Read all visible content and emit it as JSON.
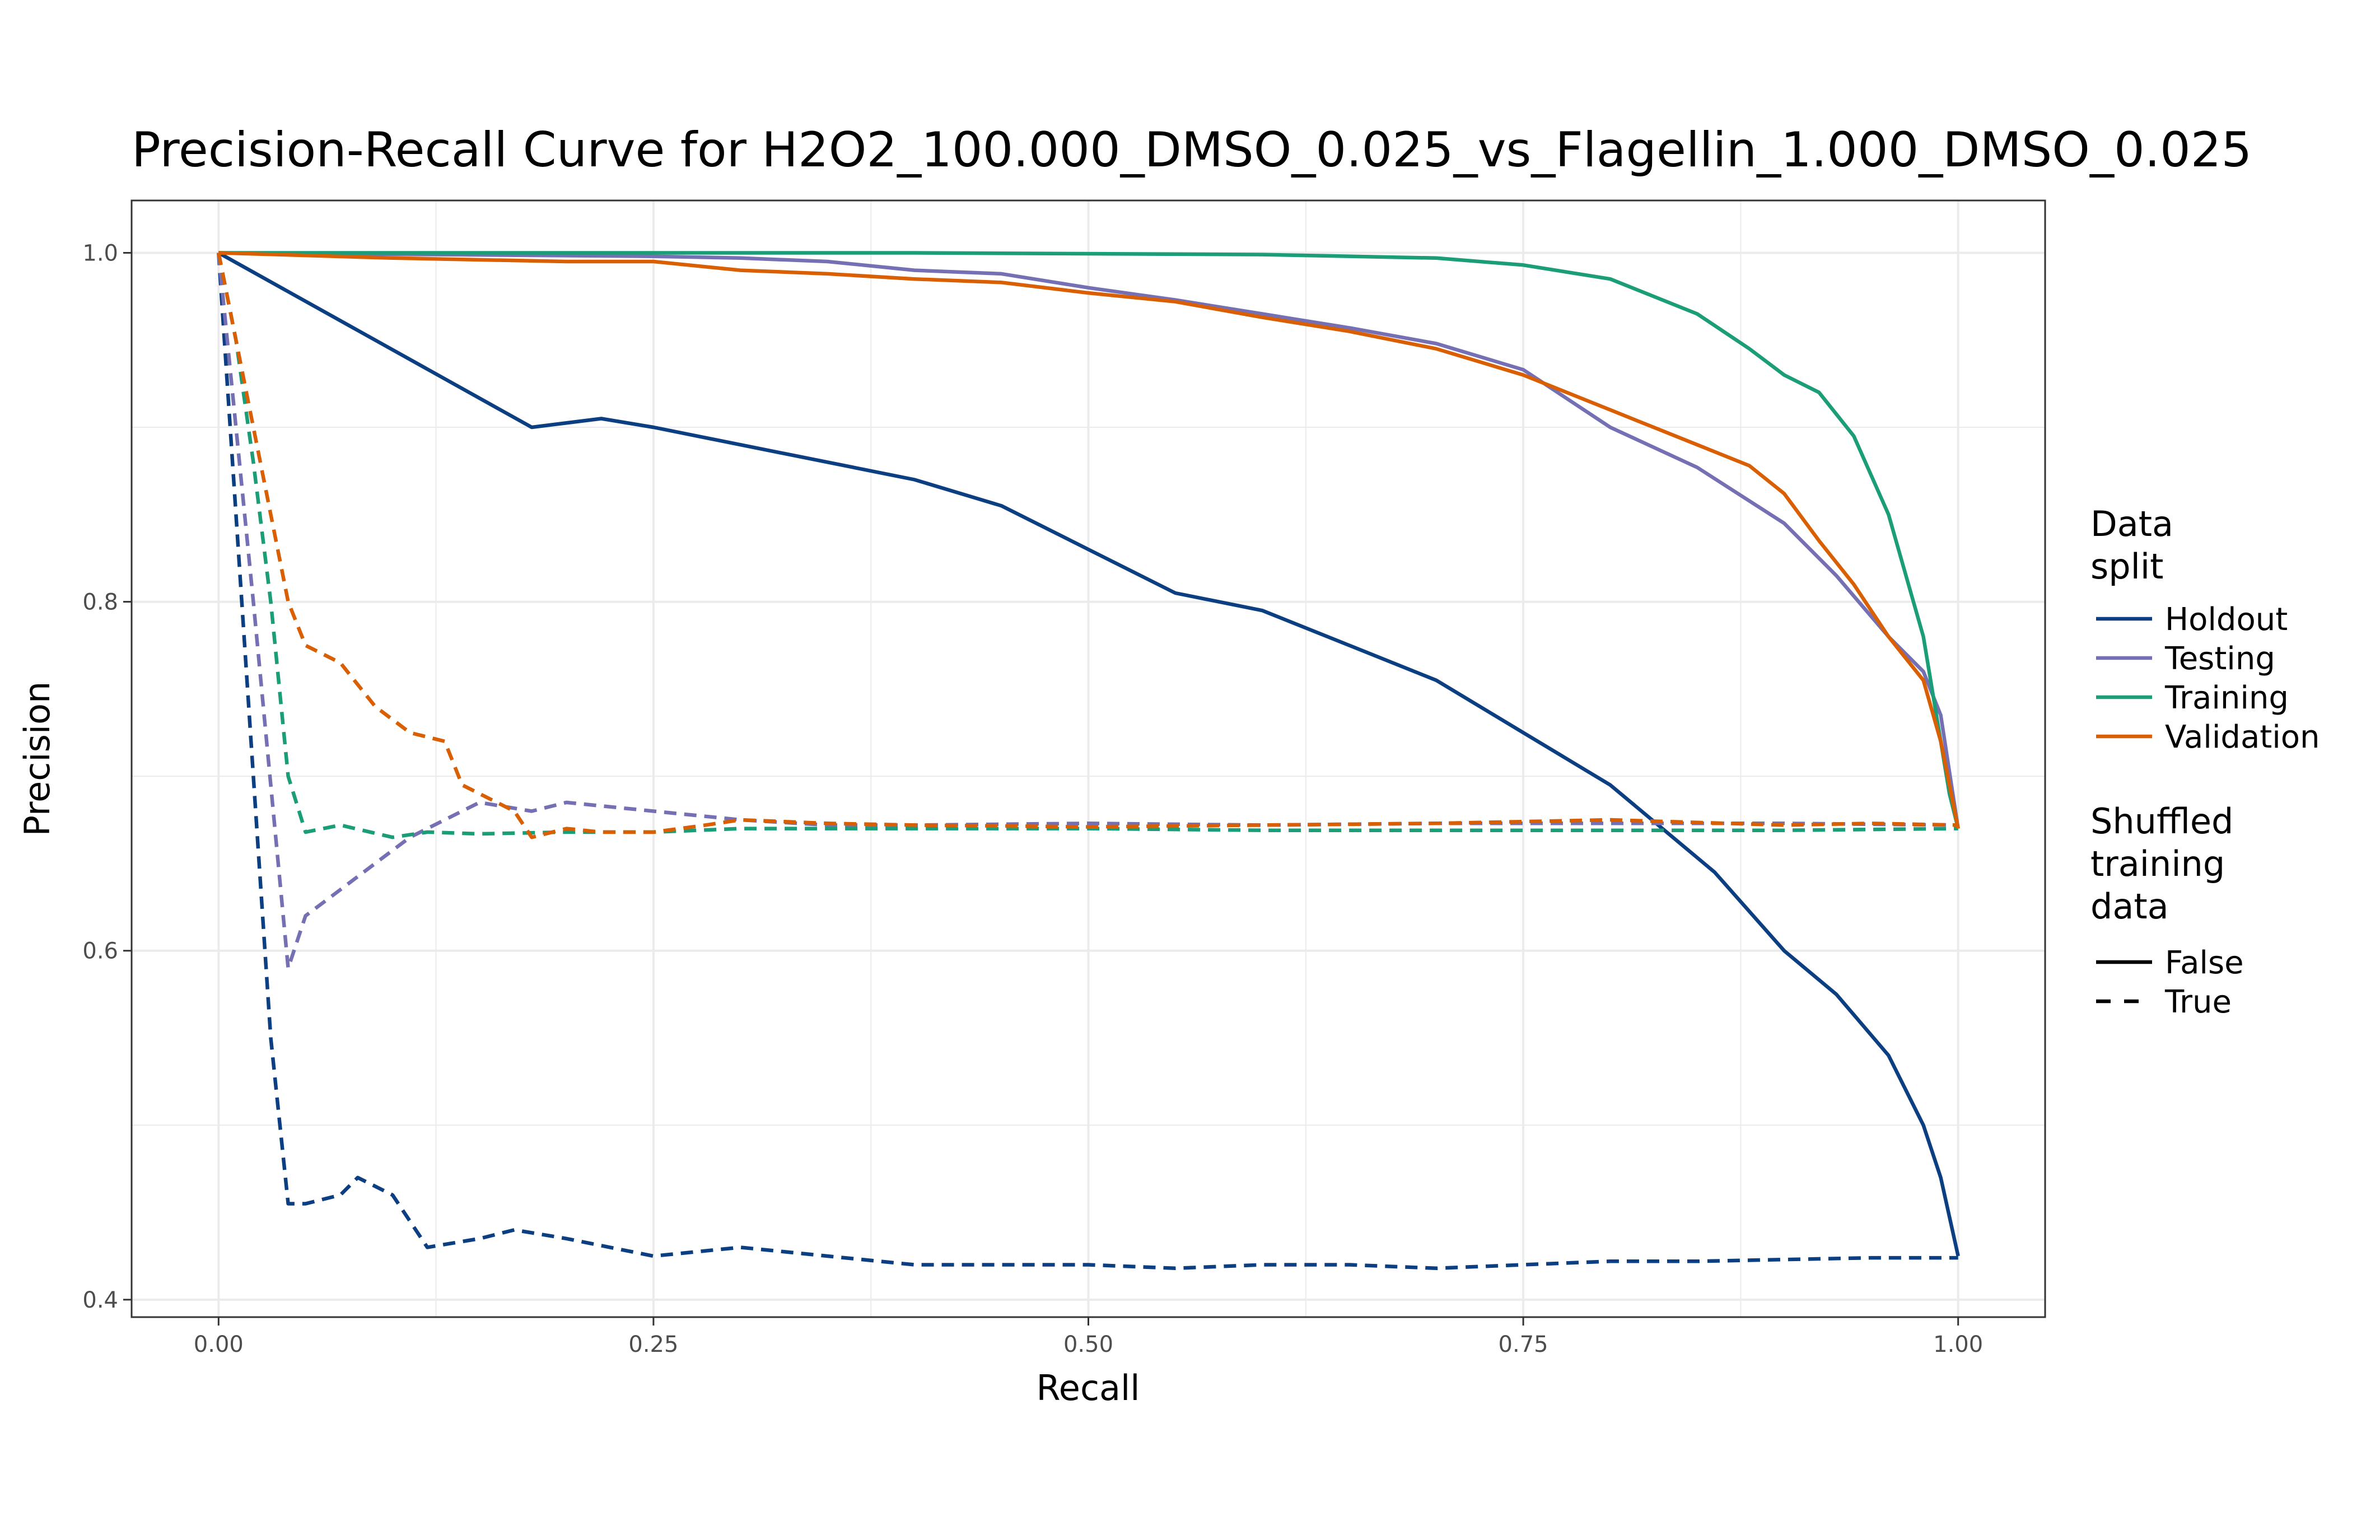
{
  "chart_data": {
    "type": "line",
    "title": "Precision-Recall Curve for H2O2_100.000_DMSO_0.025_vs_Flagellin_1.000_DMSO_0.025",
    "xlabel": "Recall",
    "ylabel": "Precision",
    "xlim": [
      -0.05,
      1.05
    ],
    "ylim": [
      0.39,
      1.03
    ],
    "x_ticks": [
      "0.00",
      "0.25",
      "0.50",
      "0.75",
      "1.00"
    ],
    "y_ticks": [
      "0.4",
      "0.6",
      "0.8",
      "1.0"
    ],
    "grid": true,
    "legend_position": "right",
    "legend": {
      "color_title": "Data split",
      "linetype_title": "Shuffled training data",
      "linetype_entries": [
        {
          "label": "False",
          "dash": "solid"
        },
        {
          "label": "True",
          "dash": "dashed"
        }
      ]
    },
    "series": [
      {
        "name": "Holdout",
        "color": "#0b3f82",
        "shuffled": "False",
        "x": [
          0,
          0.18,
          0.22,
          0.25,
          0.3,
          0.35,
          0.4,
          0.45,
          0.5,
          0.55,
          0.6,
          0.65,
          0.7,
          0.75,
          0.8,
          0.83,
          0.86,
          0.9,
          0.93,
          0.96,
          0.98,
          0.99,
          1.0
        ],
        "y": [
          1.0,
          0.9,
          0.905,
          0.9,
          0.89,
          0.88,
          0.87,
          0.855,
          0.83,
          0.805,
          0.795,
          0.775,
          0.755,
          0.725,
          0.695,
          0.67,
          0.645,
          0.6,
          0.575,
          0.54,
          0.5,
          0.47,
          0.425
        ]
      },
      {
        "name": "Holdout",
        "color": "#0b3f82",
        "shuffled": "True",
        "x": [
          0,
          0.01,
          0.02,
          0.03,
          0.04,
          0.05,
          0.07,
          0.08,
          0.1,
          0.12,
          0.15,
          0.17,
          0.2,
          0.25,
          0.3,
          0.35,
          0.4,
          0.45,
          0.5,
          0.55,
          0.6,
          0.65,
          0.7,
          0.75,
          0.8,
          0.85,
          0.9,
          0.95,
          1.0
        ],
        "y": [
          1.0,
          0.85,
          0.7,
          0.55,
          0.455,
          0.455,
          0.46,
          0.47,
          0.46,
          0.43,
          0.435,
          0.44,
          0.435,
          0.425,
          0.43,
          0.425,
          0.42,
          0.42,
          0.42,
          0.418,
          0.42,
          0.42,
          0.418,
          0.42,
          0.422,
          0.422,
          0.423,
          0.424,
          0.424
        ]
      },
      {
        "name": "Testing",
        "color": "#7570b3",
        "shuffled": "False",
        "x": [
          0,
          0.25,
          0.3,
          0.35,
          0.4,
          0.45,
          0.5,
          0.55,
          0.6,
          0.65,
          0.7,
          0.75,
          0.8,
          0.85,
          0.9,
          0.93,
          0.96,
          0.98,
          0.99,
          1.0
        ],
        "y": [
          1.0,
          0.998,
          0.997,
          0.995,
          0.99,
          0.988,
          0.98,
          0.973,
          0.965,
          0.957,
          0.948,
          0.933,
          0.9,
          0.877,
          0.845,
          0.815,
          0.78,
          0.76,
          0.735,
          0.67
        ]
      },
      {
        "name": "Testing",
        "color": "#7570b3",
        "shuffled": "True",
        "x": [
          0,
          0.02,
          0.04,
          0.05,
          0.07,
          0.09,
          0.11,
          0.13,
          0.15,
          0.18,
          0.2,
          0.25,
          0.3,
          0.35,
          0.4,
          0.5,
          0.6,
          0.7,
          0.8,
          0.9,
          1.0
        ],
        "y": [
          1.0,
          0.8,
          0.59,
          0.62,
          0.635,
          0.65,
          0.665,
          0.675,
          0.685,
          0.68,
          0.685,
          0.68,
          0.675,
          0.672,
          0.672,
          0.673,
          0.672,
          0.673,
          0.673,
          0.673,
          0.672
        ]
      },
      {
        "name": "Training",
        "color": "#1b9e77",
        "shuffled": "False",
        "x": [
          0,
          0.2,
          0.4,
          0.6,
          0.7,
          0.75,
          0.8,
          0.85,
          0.88,
          0.9,
          0.92,
          0.94,
          0.96,
          0.98,
          0.99,
          0.995,
          1.0
        ],
        "y": [
          1.0,
          1.0,
          1.0,
          0.999,
          0.997,
          0.993,
          0.985,
          0.965,
          0.945,
          0.93,
          0.92,
          0.895,
          0.85,
          0.78,
          0.72,
          0.69,
          0.67
        ]
      },
      {
        "name": "Training",
        "color": "#1b9e77",
        "shuffled": "True",
        "x": [
          0,
          0.01,
          0.02,
          0.03,
          0.04,
          0.05,
          0.07,
          0.1,
          0.12,
          0.15,
          0.2,
          0.25,
          0.3,
          0.4,
          0.5,
          0.6,
          0.7,
          0.8,
          0.9,
          1.0
        ],
        "y": [
          1.0,
          0.95,
          0.88,
          0.8,
          0.7,
          0.668,
          0.672,
          0.665,
          0.668,
          0.667,
          0.668,
          0.668,
          0.67,
          0.67,
          0.67,
          0.669,
          0.669,
          0.669,
          0.669,
          0.67
        ]
      },
      {
        "name": "Validation",
        "color": "#d95f02",
        "shuffled": "False",
        "x": [
          0,
          0.1,
          0.2,
          0.25,
          0.3,
          0.35,
          0.4,
          0.45,
          0.5,
          0.55,
          0.6,
          0.65,
          0.7,
          0.75,
          0.8,
          0.85,
          0.88,
          0.9,
          0.92,
          0.94,
          0.96,
          0.98,
          0.99,
          1.0
        ],
        "y": [
          1.0,
          0.997,
          0.995,
          0.995,
          0.99,
          0.988,
          0.985,
          0.983,
          0.977,
          0.972,
          0.963,
          0.955,
          0.945,
          0.93,
          0.91,
          0.89,
          0.878,
          0.862,
          0.835,
          0.81,
          0.78,
          0.755,
          0.72,
          0.67
        ]
      },
      {
        "name": "Validation",
        "color": "#d95f02",
        "shuffled": "True",
        "x": [
          0,
          0.02,
          0.04,
          0.05,
          0.07,
          0.09,
          0.11,
          0.13,
          0.14,
          0.15,
          0.17,
          0.18,
          0.2,
          0.22,
          0.25,
          0.28,
          0.3,
          0.35,
          0.4,
          0.5,
          0.6,
          0.7,
          0.8,
          0.9,
          0.95,
          1.0
        ],
        "y": [
          1.0,
          0.9,
          0.8,
          0.775,
          0.765,
          0.74,
          0.725,
          0.72,
          0.695,
          0.69,
          0.68,
          0.665,
          0.67,
          0.668,
          0.668,
          0.672,
          0.675,
          0.673,
          0.672,
          0.671,
          0.672,
          0.673,
          0.675,
          0.672,
          0.673,
          0.672
        ]
      }
    ]
  }
}
